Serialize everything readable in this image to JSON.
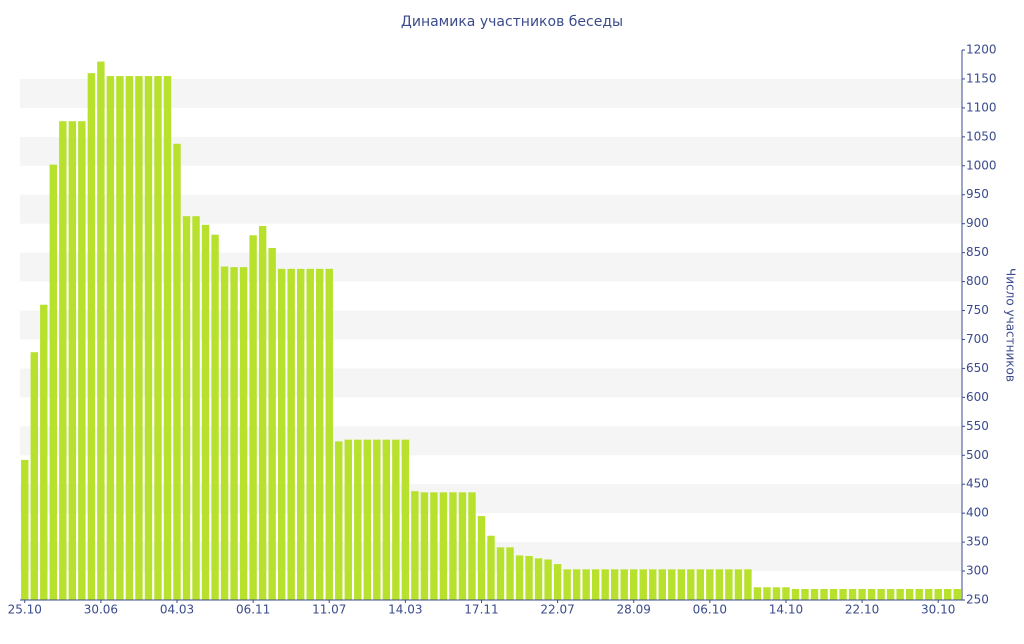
{
  "chart_data": {
    "type": "bar",
    "title": "Динамика участников беседы",
    "y_label": "Число участников",
    "y_axis_side": "right",
    "color": "#b8e12e",
    "grid": "bands",
    "ylim": [
      250,
      1200
    ],
    "yticks": [
      250,
      300,
      350,
      400,
      450,
      500,
      550,
      600,
      650,
      700,
      750,
      800,
      850,
      900,
      950,
      1000,
      1050,
      1100,
      1150,
      1200
    ],
    "categories": [
      "25.10",
      null,
      null,
      null,
      null,
      null,
      null,
      null,
      "30.06",
      null,
      null,
      null,
      null,
      null,
      null,
      null,
      "04.03",
      null,
      null,
      null,
      null,
      null,
      null,
      null,
      "06.11",
      null,
      null,
      null,
      null,
      null,
      null,
      null,
      "11.07",
      null,
      null,
      null,
      null,
      null,
      null,
      null,
      "14.03",
      null,
      null,
      null,
      null,
      null,
      null,
      null,
      "17.11",
      null,
      null,
      null,
      null,
      null,
      null,
      null,
      "22.07",
      null,
      null,
      null,
      null,
      null,
      null,
      null,
      "28.09",
      null,
      null,
      null,
      null,
      null,
      null,
      null,
      "06.10",
      null,
      null,
      null,
      null,
      null,
      null,
      null,
      "14.10",
      null,
      null,
      null,
      null,
      null,
      null,
      null,
      "22.10",
      null,
      null,
      null,
      null,
      null,
      null,
      null,
      "30.10",
      null,
      null
    ],
    "values": [
      492,
      678,
      760,
      1002,
      1077,
      1077,
      1077,
      1160,
      1180,
      1155,
      1155,
      1155,
      1155,
      1155,
      1155,
      1155,
      1038,
      913,
      913,
      898,
      881,
      826,
      825,
      825,
      880,
      896,
      858,
      822,
      822,
      822,
      822,
      822,
      822,
      524,
      527,
      527,
      527,
      527,
      527,
      527,
      527,
      438,
      436,
      436,
      436,
      436,
      436,
      436,
      395,
      361,
      341,
      341,
      327,
      326,
      322,
      320,
      312,
      303,
      303,
      303,
      303,
      303,
      303,
      303,
      303,
      303,
      303,
      303,
      303,
      303,
      303,
      303,
      303,
      303,
      303,
      303,
      303,
      272,
      272,
      272,
      272,
      269,
      269,
      269,
      269,
      269,
      269,
      269,
      269,
      269,
      269,
      269,
      269,
      269,
      269,
      269,
      269,
      269,
      269
    ]
  }
}
